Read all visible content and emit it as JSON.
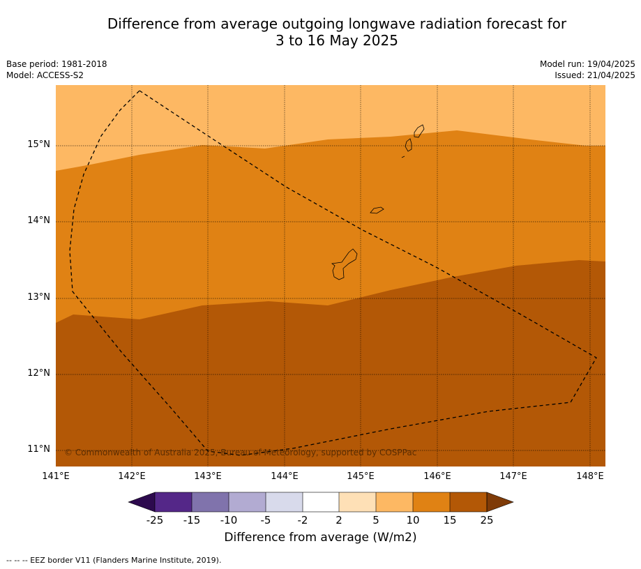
{
  "title_line1": "Difference from average outgoing longwave radiation forecast for",
  "title_line2": "3 to 16 May 2025",
  "base_period": "Base period: 1981-2018",
  "model": "Model: ACCESS-S2",
  "model_run": "Model run: 19/04/2025",
  "issued": "Issued: 21/04/2025",
  "lat_labels": [
    "15°N",
    "14°N",
    "13°N",
    "12°N",
    "11°N"
  ],
  "lon_labels": [
    "141°E",
    "142°E",
    "143°E",
    "144°E",
    "145°E",
    "146°E",
    "147°E",
    "148°E"
  ],
  "copyright": "© Commonwealth of Australia 2025, Bureau of Meteorology, supported by COSPPac",
  "colorbar": {
    "title": "Difference from average (W/m2)",
    "tick_labels": [
      "-25",
      "-15",
      "-10",
      "-5",
      "-2",
      "2",
      "5",
      "10",
      "15",
      "25"
    ],
    "colors": {
      "below_-25": "#2d0a4e",
      "-25_-15": "#542788",
      "-15_-10": "#8073ac",
      "-10_-5": "#b2abd2",
      "-5_-2": "#d8daeb",
      "-2_2": "#ffffff",
      "2_5": "#fee0b6",
      "5_10": "#fdb863",
      "10_15": "#e08214",
      "15_25": "#b35806",
      "above_25": "#7f3b08"
    }
  },
  "map_fields": [
    {
      "range": "5 to 10",
      "color": "#fdb863"
    },
    {
      "range": "10 to 15",
      "color": "#e08214"
    },
    {
      "range": "15 to 25",
      "color": "#b35806"
    }
  ],
  "footnote": "--  --  -- EEZ border V11 (Flanders Marine Institute, 2019)."
}
